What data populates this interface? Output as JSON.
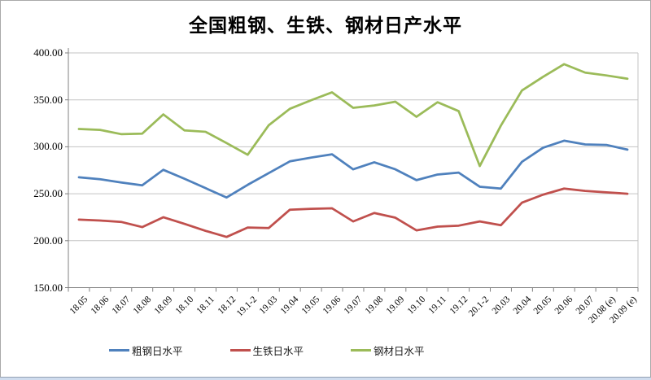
{
  "colors": {
    "crude_steel_line": "#4F81BD",
    "pig_iron_line": "#C0504D",
    "steel_products_line": "#9BBB59",
    "gridline": "#C3C3C3",
    "axis_line": "#808080",
    "plot_background": "#FFFFFF",
    "window_bottom_edge": "#CFDCEE"
  },
  "chart_data": {
    "type": "line",
    "title": "全国粗钢、生铁、钢材日产水平",
    "grid": true,
    "legend_position": "bottom",
    "categories": [
      "18.05",
      "18.06",
      "18.07",
      "18.08",
      "18.09",
      "18.10",
      "18.11",
      "18.12",
      "19.1-2",
      "19.03",
      "19.04",
      "19.05",
      "19.06",
      "19.07",
      "19.08",
      "19.09",
      "19.10",
      "19.11",
      "19.12",
      "20.1-2",
      "20.03",
      "20.04",
      "20.05",
      "20.06",
      "20.07",
      "20.08 (e)",
      "20.09 (e)"
    ],
    "y_axis": {
      "min": 150,
      "max": 400,
      "step": 50,
      "tick_labels": [
        "400.00",
        "350.00",
        "300.00",
        "250.00",
        "200.00",
        "150.00"
      ]
    },
    "series": [
      {
        "name": "粗钢日水平",
        "color": "#4F81BD",
        "values": [
          267.5,
          265.5,
          262,
          259,
          275.5,
          266,
          256,
          246,
          259.5,
          272,
          284.5,
          288.5,
          292,
          276,
          283.5,
          276,
          264.5,
          270.5,
          272.5,
          257.5,
          255.5,
          284,
          299,
          306.5,
          302.5,
          302,
          297
        ]
      },
      {
        "name": "生铁日水平",
        "color": "#C0504D",
        "values": [
          222.5,
          221.5,
          220,
          214.5,
          225,
          218,
          210.5,
          204,
          214,
          213.5,
          233,
          234,
          234.5,
          220.5,
          229.5,
          224.5,
          211,
          215,
          216,
          220.5,
          216.5,
          240.5,
          249,
          255.5,
          253,
          251.5,
          250
        ]
      },
      {
        "name": "钢材日水平",
        "color": "#9BBB59",
        "values": [
          319,
          318,
          313.5,
          314,
          334.5,
          317.5,
          316,
          304,
          291.5,
          323,
          340.5,
          349.5,
          358,
          341.5,
          344,
          348,
          332,
          347.5,
          338,
          279.5,
          322.5,
          360,
          374.5,
          388,
          379,
          376,
          372.5
        ]
      }
    ]
  }
}
